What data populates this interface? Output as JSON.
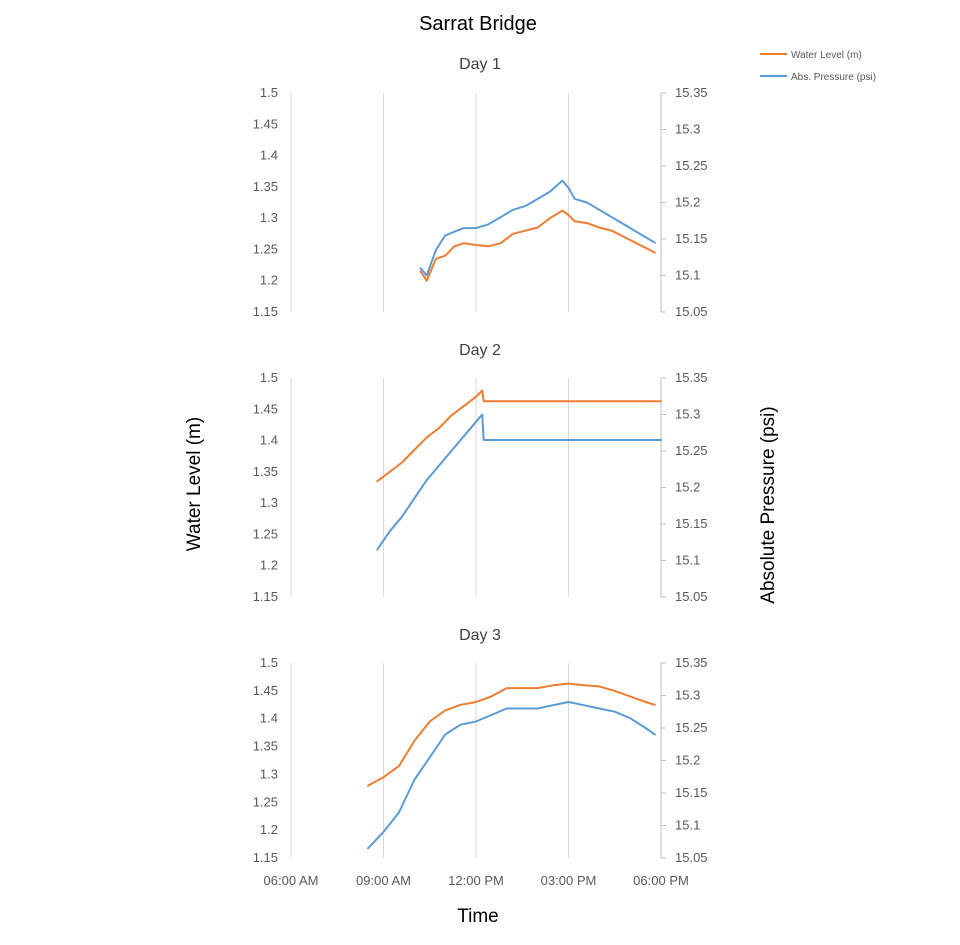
{
  "title": "Sarrat Bridge",
  "xlabel": "Time",
  "ylabel_left": "Water Level (m)",
  "ylabel_right": "Absolute Pressure (psi)",
  "legend": {
    "position": "top-right",
    "items": [
      {
        "label": "Water Level (m)",
        "color": "#ED7D31"
      },
      {
        "label": "Abs. Pressure (psi)",
        "color": "#5B9BD5"
      }
    ]
  },
  "chart_data": {
    "type": "line",
    "grid": "vertical",
    "x_unit": "hour of day",
    "x_ticks": [
      {
        "value": 6,
        "label": "06:00 AM"
      },
      {
        "value": 9,
        "label": "09:00 AM"
      },
      {
        "value": 12,
        "label": "12:00 PM"
      },
      {
        "value": 15,
        "label": "03:00 PM"
      },
      {
        "value": 18,
        "label": "06:00 PM"
      }
    ],
    "xlim": [
      6,
      18
    ],
    "y_left": {
      "label": "Water Level (m)",
      "lim": [
        1.15,
        1.5
      ],
      "ticks": [
        "1.15",
        "1.2",
        "1.25",
        "1.3",
        "1.35",
        "1.4",
        "1.45",
        "1.5"
      ]
    },
    "y_right": {
      "label": "Absolute Pressure (psi)",
      "lim": [
        15.05,
        15.35
      ],
      "ticks": [
        "15.05",
        "15.1",
        "15.15",
        "15.2",
        "15.25",
        "15.3",
        "15.35"
      ]
    },
    "panels": [
      {
        "title": "Day 1",
        "series": [
          {
            "name": "Water Level (m)",
            "color": "#ED7D31",
            "axis": "left",
            "x": [
              10.2,
              10.4,
              10.7,
              11.0,
              11.3,
              11.6,
              12.0,
              12.4,
              12.8,
              13.2,
              13.6,
              14.0,
              14.4,
              14.8,
              15.0,
              15.2,
              15.6,
              16.0,
              16.4,
              16.8,
              17.2,
              17.6,
              17.8
            ],
            "y": [
              1.215,
              1.2,
              1.235,
              1.24,
              1.255,
              1.26,
              1.257,
              1.255,
              1.26,
              1.275,
              1.28,
              1.285,
              1.3,
              1.312,
              1.305,
              1.295,
              1.292,
              1.285,
              1.28,
              1.27,
              1.26,
              1.25,
              1.245
            ]
          },
          {
            "name": "Abs. Pressure (psi)",
            "color": "#5B9BD5",
            "axis": "right",
            "x": [
              10.2,
              10.4,
              10.7,
              11.0,
              11.3,
              11.6,
              12.0,
              12.4,
              12.8,
              13.2,
              13.6,
              14.0,
              14.4,
              14.8,
              15.0,
              15.2,
              15.6,
              16.0,
              16.4,
              16.8,
              17.2,
              17.6,
              17.8
            ],
            "y": [
              15.11,
              15.1,
              15.135,
              15.155,
              15.16,
              15.165,
              15.165,
              15.17,
              15.18,
              15.19,
              15.195,
              15.205,
              15.215,
              15.23,
              15.22,
              15.205,
              15.2,
              15.19,
              15.18,
              15.17,
              15.16,
              15.15,
              15.145
            ]
          }
        ]
      },
      {
        "title": "Day 2",
        "series": [
          {
            "name": "Water Level (m)",
            "color": "#ED7D31",
            "axis": "left",
            "x": [
              8.8,
              9.2,
              9.6,
              10.0,
              10.4,
              10.8,
              11.2,
              11.6,
              12.0,
              12.2,
              12.25,
              18.0
            ],
            "y": [
              1.335,
              1.35,
              1.365,
              1.385,
              1.405,
              1.42,
              1.44,
              1.455,
              1.47,
              1.48,
              1.463,
              1.463
            ]
          },
          {
            "name": "Abs. Pressure (psi)",
            "color": "#5B9BD5",
            "axis": "right",
            "x": [
              8.8,
              9.2,
              9.6,
              10.0,
              10.4,
              10.8,
              11.2,
              11.6,
              12.0,
              12.2,
              12.25,
              18.0
            ],
            "y": [
              15.115,
              15.14,
              15.16,
              15.185,
              15.21,
              15.23,
              15.25,
              15.27,
              15.29,
              15.3,
              15.265,
              15.265
            ]
          }
        ]
      },
      {
        "title": "Day 3",
        "series": [
          {
            "name": "Water Level (m)",
            "color": "#ED7D31",
            "axis": "left",
            "x": [
              8.5,
              9.0,
              9.5,
              10.0,
              10.5,
              11.0,
              11.5,
              12.0,
              12.5,
              13.0,
              13.5,
              14.0,
              14.5,
              15.0,
              15.5,
              16.0,
              16.5,
              17.0,
              17.5,
              17.8
            ],
            "y": [
              1.28,
              1.295,
              1.315,
              1.36,
              1.395,
              1.415,
              1.425,
              1.43,
              1.44,
              1.455,
              1.455,
              1.455,
              1.46,
              1.463,
              1.46,
              1.458,
              1.45,
              1.44,
              1.43,
              1.425
            ]
          },
          {
            "name": "Abs. Pressure (psi)",
            "color": "#5B9BD5",
            "axis": "right",
            "x": [
              8.5,
              9.0,
              9.5,
              10.0,
              10.5,
              11.0,
              11.5,
              12.0,
              12.5,
              13.0,
              13.5,
              14.0,
              14.5,
              15.0,
              15.5,
              16.0,
              16.5,
              17.0,
              17.5,
              17.8
            ],
            "y": [
              15.065,
              15.09,
              15.12,
              15.17,
              15.205,
              15.24,
              15.255,
              15.26,
              15.27,
              15.28,
              15.28,
              15.28,
              15.285,
              15.29,
              15.285,
              15.28,
              15.275,
              15.265,
              15.25,
              15.24
            ]
          }
        ]
      }
    ]
  }
}
